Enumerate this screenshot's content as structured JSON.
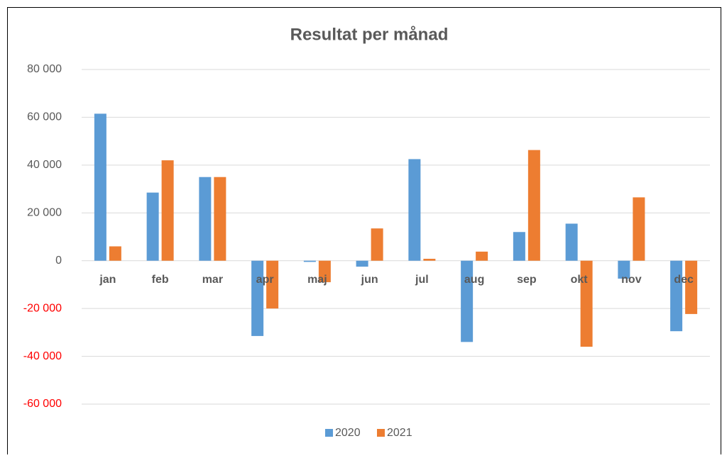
{
  "chart_data": {
    "type": "bar",
    "title": "Resultat per månad",
    "categories": [
      "jan",
      "feb",
      "mar",
      "apr",
      "maj",
      "jun",
      "jul",
      "aug",
      "sep",
      "okt",
      "nov",
      "dec"
    ],
    "series": [
      {
        "name": "2020",
        "color": "#5b9bd5",
        "values": [
          61500,
          28500,
          35000,
          -31500,
          -500,
          -2500,
          42500,
          -34000,
          12000,
          15500,
          -7500,
          -29500
        ]
      },
      {
        "name": "2021",
        "color": "#ed7d31",
        "values": [
          6000,
          42000,
          35000,
          -20000,
          -9000,
          13500,
          800,
          3800,
          46300,
          -36000,
          26500,
          -22300
        ]
      }
    ],
    "ylim": [
      -60000,
      80000
    ],
    "yticks": [
      {
        "value": -60000,
        "label": "-60 000"
      },
      {
        "value": -40000,
        "label": "-40 000"
      },
      {
        "value": -20000,
        "label": "-20 000"
      },
      0,
      {
        "value": 20000,
        "label": "20 000"
      },
      {
        "value": 40000,
        "label": "40 000"
      },
      {
        "value": 60000,
        "label": "60 000"
      },
      {
        "value": 80000,
        "label": "80 000"
      }
    ],
    "grid": true,
    "negative_tick_color": "#ff0000",
    "legend": "bottom"
  }
}
